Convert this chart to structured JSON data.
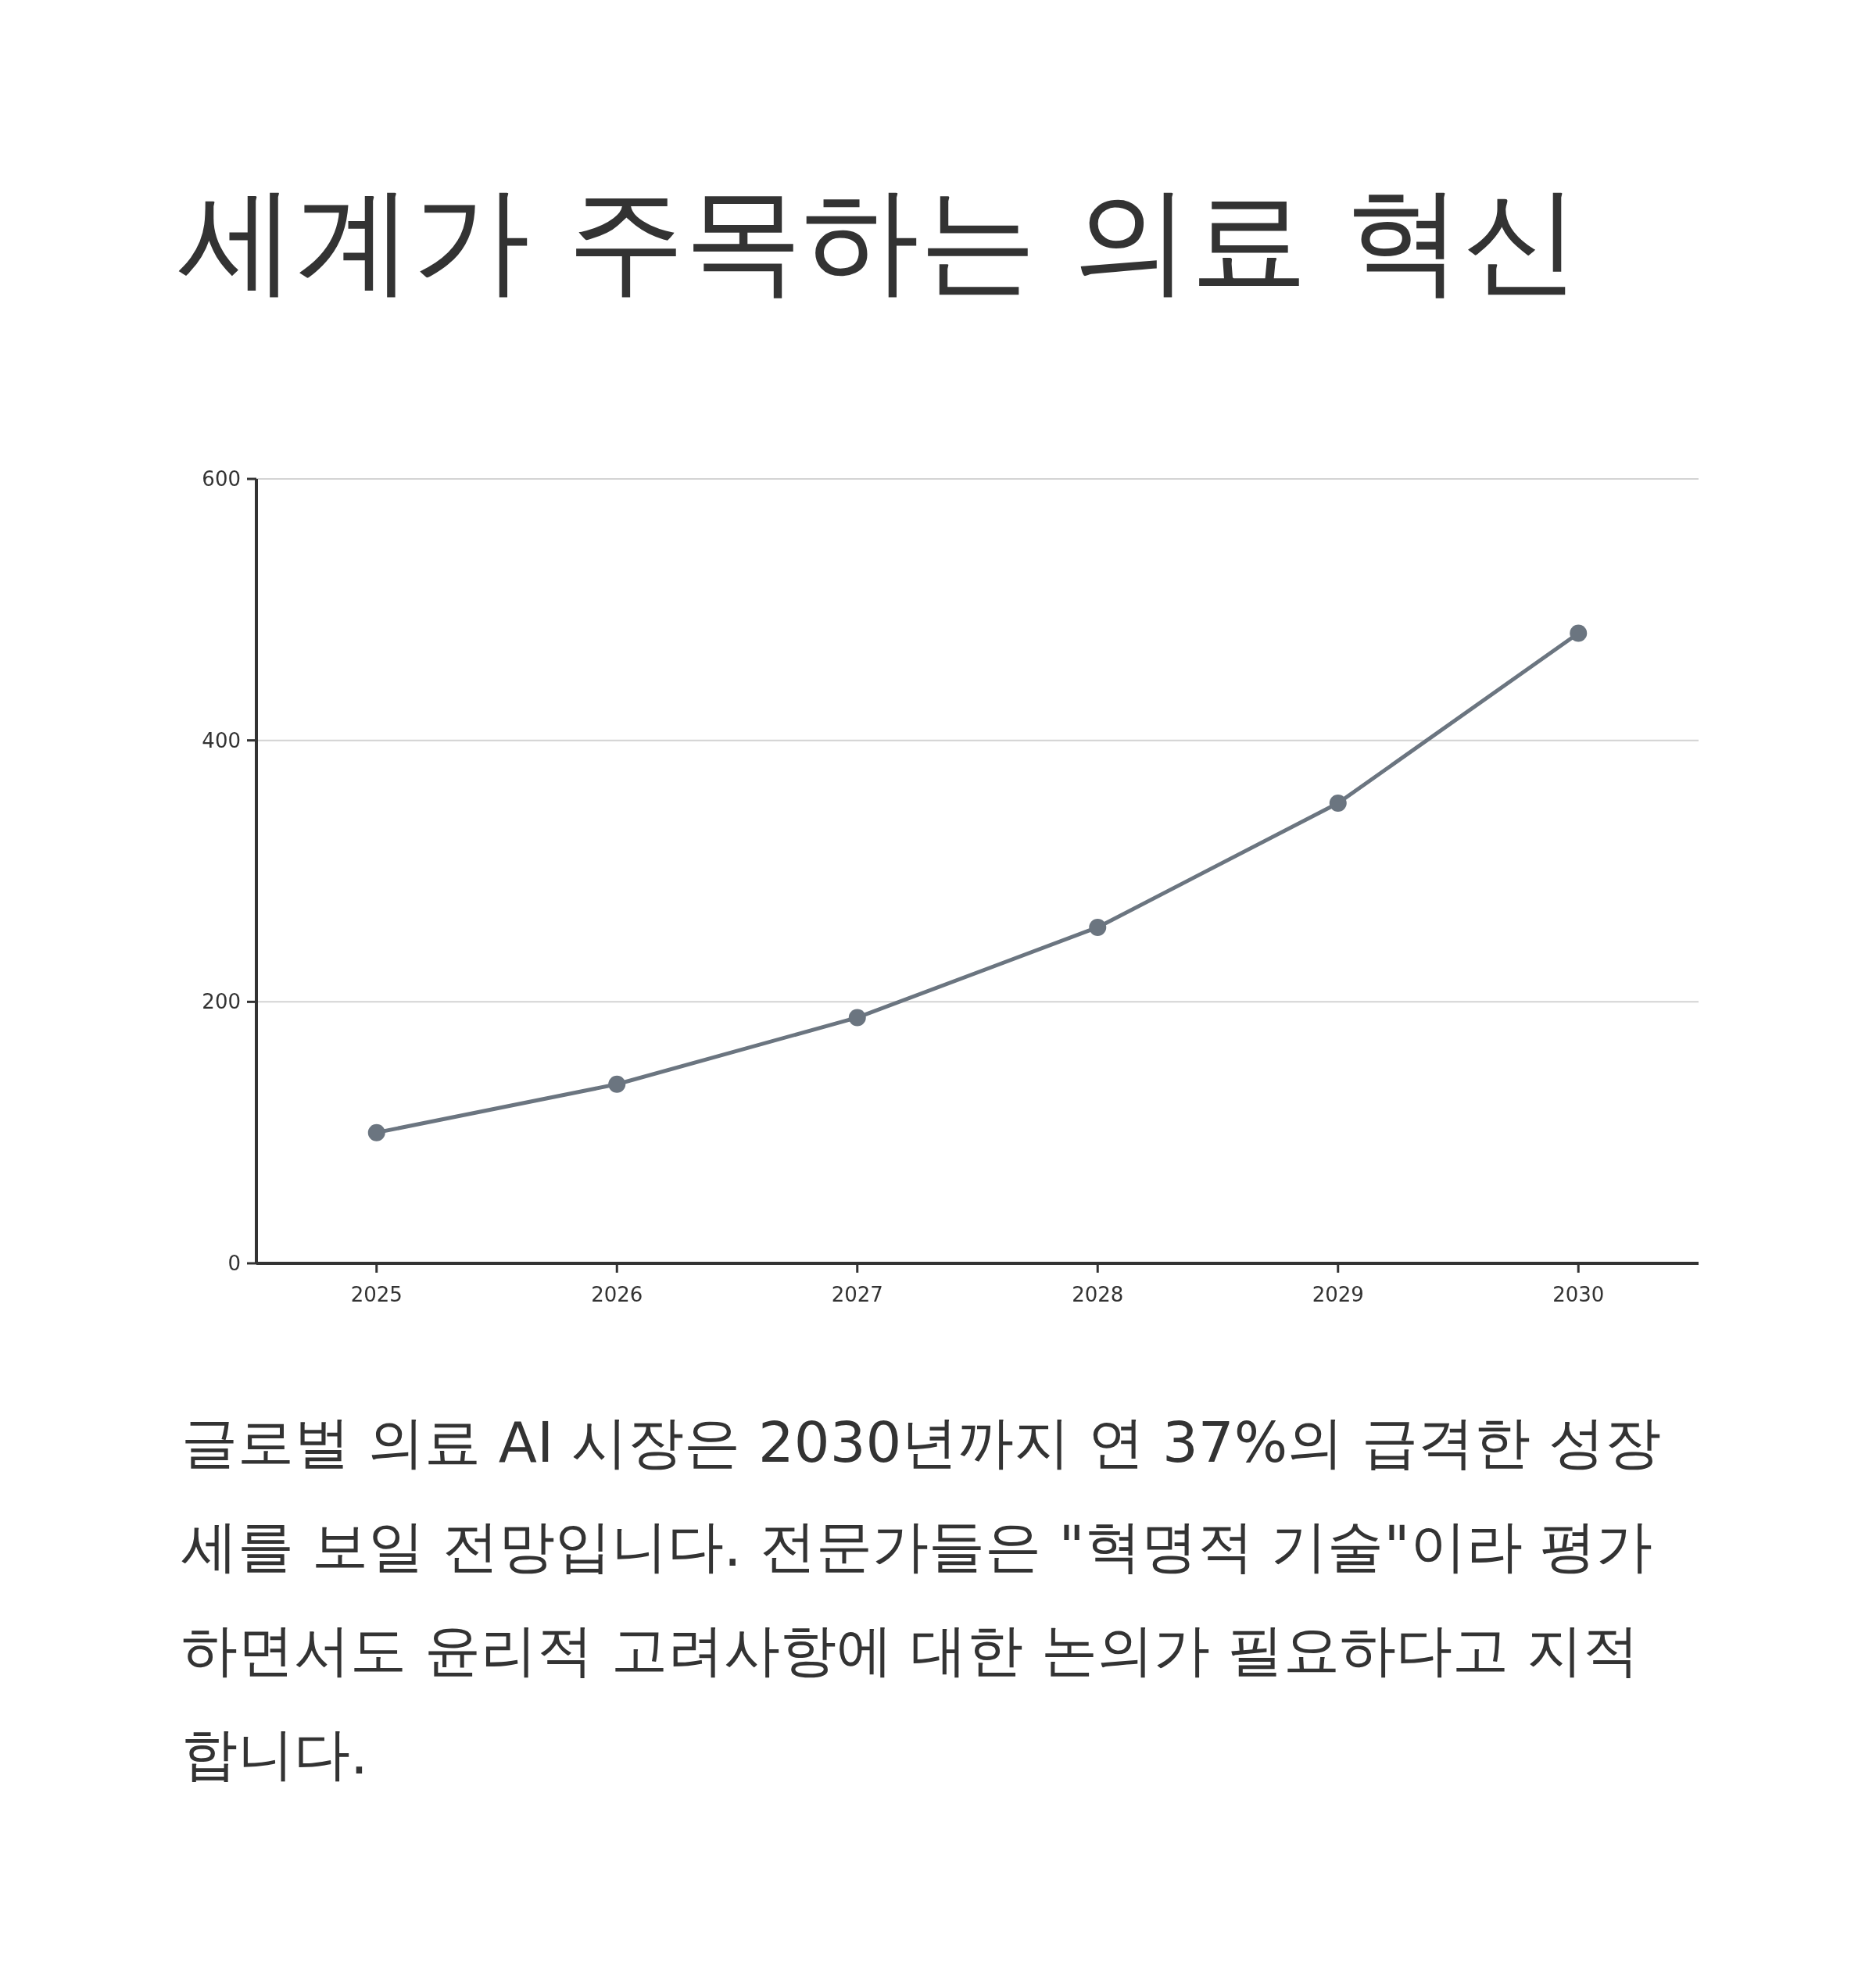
{
  "chart_data": {
    "type": "line",
    "title": "세계가 주목하는 의료 혁신",
    "categories": [
      "2025",
      "2026",
      "2027",
      "2028",
      "2029",
      "2030"
    ],
    "values": [
      100,
      137,
      188,
      257,
      352,
      482
    ],
    "color": "#6b7580",
    "ylim": [
      0,
      600
    ],
    "yticks": [
      0,
      200,
      400,
      600
    ],
    "grid": "y",
    "marker": "circle",
    "line_style": "solid",
    "annotations": [
      "글로벌 의료 AI 시장은 2030년까지 연 37%의 급격한 성장세를 보일 전망입니다. 전문가들은 \"혁명적 기술\"이라 평가하면서도 윤리적 고려사항에 대한 논의가 필요하다고 지적합니다."
    ]
  }
}
